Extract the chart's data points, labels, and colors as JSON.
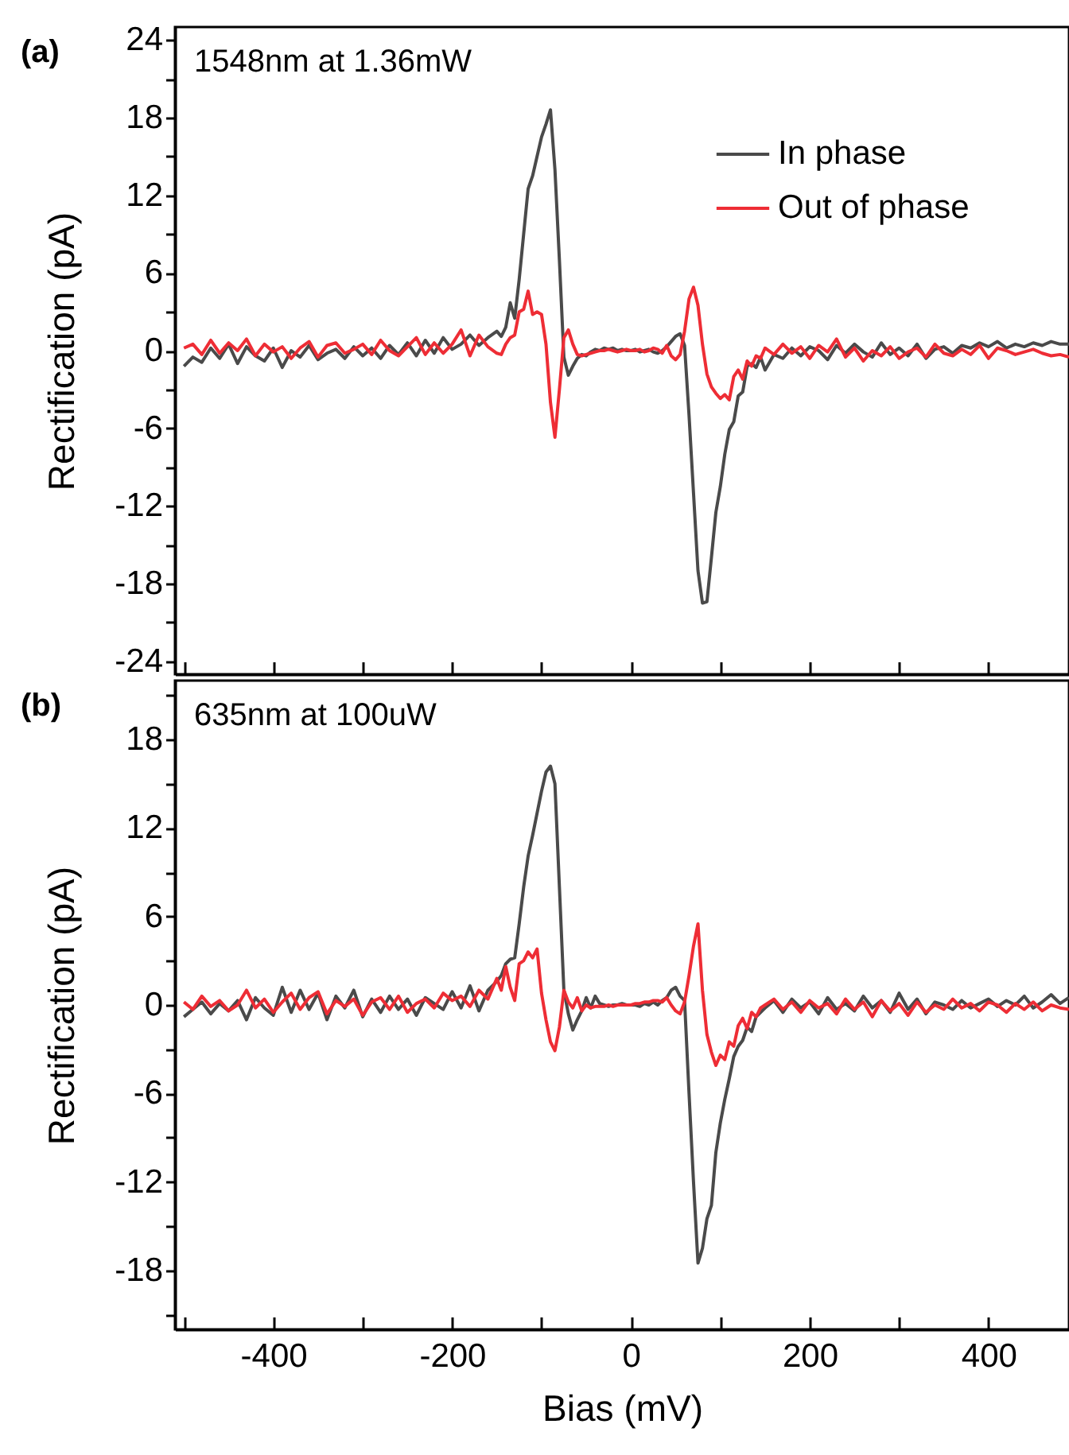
{
  "chart_data": [
    {
      "type": "line",
      "title": "(a)",
      "subtitle": "1548nm at 1.36mW",
      "ylabel": "Rectification (pA)",
      "legend": "top right",
      "tick_labels": "y",
      "xlim": [
        -510,
        490
      ],
      "xticks": [
        {
          "value": -500,
          "label": null
        },
        -400,
        {
          "value": -300,
          "label": null
        },
        -200,
        {
          "value": -100,
          "label": null
        },
        0,
        {
          "value": 100,
          "label": null
        },
        200,
        {
          "value": 300,
          "label": null
        },
        400
      ],
      "ylim": [
        -25,
        25
      ],
      "yticks": [
        -24,
        {
          "value": -21,
          "label": null
        },
        -18,
        {
          "value": -15,
          "label": null
        },
        -12,
        {
          "value": -9,
          "label": null
        },
        -6,
        {
          "value": -3,
          "label": null
        },
        0,
        {
          "value": 3,
          "label": null
        },
        6,
        {
          "value": 9,
          "label": null
        },
        12,
        {
          "value": 15,
          "label": null
        },
        18,
        {
          "value": 21,
          "label": null
        },
        24
      ],
      "x": [
        -500,
        -490,
        -480,
        -470,
        -460,
        -450,
        -440,
        -430,
        -420,
        -410,
        -400,
        -390,
        -380,
        -370,
        -360,
        -350,
        -340,
        -330,
        -320,
        -310,
        -300,
        -290,
        -280,
        -270,
        -260,
        -250,
        -240,
        -230,
        -220,
        -210,
        -200,
        -190,
        -180,
        -170,
        -160,
        -150,
        -145,
        -140,
        -135,
        -130,
        -125,
        -120,
        -115,
        -110,
        -105,
        -100,
        -95,
        -90,
        -85,
        -80,
        -75,
        -70,
        -65,
        -60,
        -55,
        -50,
        -45,
        -40,
        -35,
        -30,
        -25,
        -20,
        -15,
        -10,
        -5,
        0,
        5,
        10,
        15,
        20,
        25,
        30,
        35,
        40,
        45,
        50,
        55,
        60,
        65,
        70,
        75,
        80,
        85,
        90,
        95,
        100,
        105,
        110,
        115,
        120,
        125,
        130,
        135,
        140,
        145,
        150,
        160,
        170,
        180,
        190,
        200,
        210,
        220,
        230,
        240,
        250,
        260,
        270,
        280,
        290,
        300,
        310,
        320,
        330,
        340,
        350,
        360,
        370,
        380,
        390,
        400,
        410,
        420,
        430,
        440,
        450,
        460,
        470,
        480,
        490
      ],
      "series": [
        {
          "name": "In phase",
          "color": "#4a4a4a",
          "values": [
            -1.2,
            -0.5,
            -0.9,
            0.2,
            -0.6,
            0.5,
            -1.0,
            0.3,
            -0.4,
            -0.8,
            0.2,
            -1.3,
            0.0,
            -0.5,
            0.4,
            -0.7,
            -0.2,
            0.1,
            -0.6,
            0.3,
            -0.4,
            0.2,
            -0.6,
            0.4,
            -0.3,
            0.6,
            -0.4,
            0.8,
            -0.2,
            1.0,
            0.1,
            0.5,
            1.2,
            0.4,
            1.0,
            1.5,
            1.1,
            1.8,
            3.7,
            2.5,
            5.5,
            9.0,
            12.5,
            13.5,
            15.0,
            16.5,
            17.5,
            18.6,
            14.0,
            7.0,
            -0.5,
            -1.9,
            -1.2,
            -0.6,
            -0.3,
            -0.4,
            -0.1,
            0.1,
            0.0,
            0.2,
            0.1,
            0.2,
            0.0,
            0.1,
            0.0,
            0.0,
            0.1,
            -0.1,
            0.0,
            0.1,
            -0.1,
            -0.2,
            0.0,
            0.3,
            0.7,
            1.1,
            1.3,
            0.4,
            -5.0,
            -11.0,
            -17.0,
            -19.5,
            -19.4,
            -16.0,
            -12.5,
            -10.5,
            -8.0,
            -6.1,
            -5.5,
            -3.5,
            -3.2,
            -1.2,
            -1.0,
            -1.3,
            -0.5,
            -1.5,
            -0.3,
            -0.6,
            0.2,
            -0.4,
            0.3,
            0.0,
            -0.7,
            0.4,
            -0.2,
            0.5,
            -0.1,
            -0.5,
            0.6,
            -0.3,
            0.2,
            -0.4,
            0.5,
            -0.6,
            0.1,
            0.3,
            -0.2,
            0.4,
            0.2,
            0.6,
            0.3,
            0.7,
            0.2,
            0.5,
            0.3,
            0.6,
            0.4,
            0.7,
            0.5,
            0.5
          ]
        },
        {
          "name": "Out of phase",
          "color": "#ee2d35",
          "values": [
            0.2,
            0.5,
            -0.3,
            0.8,
            -0.2,
            0.6,
            0.0,
            0.9,
            -0.4,
            0.5,
            -0.1,
            0.3,
            -0.6,
            0.2,
            0.7,
            -0.5,
            0.4,
            0.6,
            -0.2,
            0.1,
            0.5,
            -0.3,
            0.8,
            0.0,
            -0.4,
            0.3,
            1.0,
            -0.3,
            0.6,
            -0.2,
            0.5,
            1.6,
            -0.4,
            1.2,
            0.3,
            -0.2,
            -0.3,
            0.5,
            1.0,
            1.2,
            3.0,
            3.2,
            4.6,
            2.8,
            3.0,
            2.8,
            0.5,
            -4.0,
            -6.7,
            -3.0,
            1.0,
            1.6,
            0.5,
            -0.3,
            -0.4,
            -0.3,
            -0.2,
            -0.1,
            0.0,
            0.0,
            0.1,
            0.0,
            -0.1,
            0.0,
            0.1,
            0.0,
            0.0,
            0.1,
            -0.1,
            0.0,
            0.2,
            0.1,
            -0.2,
            0.4,
            -0.4,
            -0.7,
            -0.3,
            1.5,
            4.0,
            4.9,
            3.5,
            0.5,
            -1.8,
            -2.8,
            -3.3,
            -3.7,
            -3.4,
            -3.8,
            -2.0,
            -1.5,
            -2.2,
            -0.8,
            -1.2,
            -0.4,
            -0.6,
            0.2,
            -0.3,
            0.5,
            -0.2,
            0.3,
            -0.6,
            0.4,
            -0.1,
            0.9,
            -0.5,
            0.2,
            -0.8,
            0.0,
            -0.4,
            0.3,
            -0.6,
            -0.1,
            0.2,
            -0.5,
            0.5,
            -0.2,
            -0.4,
            0.1,
            -0.3,
            0.4,
            -0.6,
            0.2,
            0.0,
            -0.3,
            -0.1,
            0.1,
            -0.2,
            -0.4,
            -0.3,
            -0.5
          ]
        }
      ]
    },
    {
      "type": "line",
      "title": "(b)",
      "subtitle": "635nm at 100uW",
      "xlabel": "Bias (mV)",
      "ylabel": "Rectification (pA)",
      "legend": "top right",
      "xlim": [
        -510,
        490
      ],
      "xticks": [
        {
          "value": -500,
          "label": null
        },
        -400,
        {
          "value": -300,
          "label": null
        },
        -200,
        {
          "value": -100,
          "label": null
        },
        0,
        {
          "value": 100,
          "label": null
        },
        200,
        {
          "value": 300,
          "label": null
        },
        400
      ],
      "ylim": [
        -22,
        22
      ],
      "yticks": [
        {
          "value": -21,
          "label": null
        },
        -18,
        {
          "value": -15,
          "label": null
        },
        -12,
        {
          "value": -9,
          "label": null
        },
        -6,
        {
          "value": -3,
          "label": null
        },
        0,
        {
          "value": 3,
          "label": null
        },
        6,
        {
          "value": 9,
          "label": null
        },
        12,
        {
          "value": 15,
          "label": null
        },
        18,
        {
          "value": 21,
          "label": null
        }
      ],
      "x": [
        -500,
        -490,
        -480,
        -470,
        -460,
        -450,
        -440,
        -430,
        -420,
        -410,
        -400,
        -390,
        -380,
        -370,
        -360,
        -350,
        -340,
        -330,
        -320,
        -310,
        -300,
        -290,
        -280,
        -270,
        -260,
        -250,
        -240,
        -230,
        -220,
        -210,
        -200,
        -190,
        -180,
        -170,
        -160,
        -150,
        -145,
        -140,
        -135,
        -130,
        -125,
        -120,
        -115,
        -110,
        -105,
        -100,
        -95,
        -90,
        -85,
        -80,
        -75,
        -70,
        -65,
        -60,
        -55,
        -50,
        -45,
        -40,
        -35,
        -30,
        -25,
        -20,
        -15,
        -10,
        -5,
        0,
        5,
        10,
        15,
        20,
        25,
        30,
        35,
        40,
        45,
        50,
        55,
        60,
        65,
        70,
        75,
        80,
        85,
        90,
        95,
        100,
        105,
        110,
        115,
        120,
        125,
        130,
        135,
        140,
        145,
        150,
        160,
        170,
        180,
        190,
        200,
        210,
        220,
        230,
        240,
        250,
        260,
        270,
        280,
        290,
        300,
        310,
        320,
        330,
        340,
        350,
        360,
        370,
        380,
        390,
        400,
        410,
        420,
        430,
        440,
        450,
        460,
        470,
        480,
        490
      ],
      "series": [
        {
          "name": "In phase",
          "color": "#4a4a4a",
          "values": [
            -0.8,
            -0.3,
            0.2,
            -0.6,
            0.1,
            -0.4,
            0.3,
            -1.0,
            0.5,
            -0.2,
            -0.7,
            1.2,
            -0.5,
            1.0,
            -0.3,
            0.8,
            -1.0,
            0.6,
            -0.2,
            1.0,
            -0.8,
            0.4,
            -0.5,
            0.6,
            -0.3,
            0.4,
            -0.7,
            0.5,
            0.1,
            -0.3,
            0.9,
            -0.2,
            1.3,
            -0.4,
            1.0,
            1.6,
            2.0,
            2.8,
            3.1,
            3.2,
            5.5,
            8.0,
            10.1,
            11.5,
            13.0,
            14.5,
            15.8,
            16.2,
            15.0,
            8.0,
            1.0,
            -0.6,
            -1.7,
            -1.0,
            -0.4,
            0.5,
            -0.2,
            0.6,
            0.1,
            0.0,
            -0.1,
            0.0,
            0.0,
            0.1,
            0.0,
            0.0,
            0.0,
            -0.1,
            0.1,
            0.0,
            0.2,
            0.0,
            0.3,
            0.5,
            1.0,
            1.2,
            0.6,
            0.3,
            -6.0,
            -12.0,
            -17.5,
            -16.5,
            -14.5,
            -13.6,
            -10.0,
            -8.0,
            -6.4,
            -5.0,
            -3.5,
            -2.8,
            -2.4,
            -1.5,
            -1.8,
            -0.8,
            -0.5,
            -0.2,
            0.3,
            -0.5,
            0.4,
            -0.2,
            0.2,
            -0.6,
            0.5,
            -0.3,
            0.1,
            -0.4,
            0.6,
            -0.2,
            0.3,
            -0.5,
            0.8,
            -0.3,
            0.4,
            -0.6,
            0.2,
            0.0,
            -0.3,
            0.3,
            -0.2,
            0.1,
            0.4,
            -0.1,
            0.3,
            0.0,
            0.6,
            -0.2,
            0.2,
            0.7,
            0.1,
            0.5
          ]
        },
        {
          "name": "Out of phase",
          "color": "#ee2d35",
          "values": [
            0.2,
            -0.3,
            0.6,
            -0.1,
            0.3,
            -0.4,
            0.0,
            1.0,
            -0.2,
            0.4,
            -0.5,
            0.2,
            0.8,
            -0.3,
            0.5,
            0.9,
            -0.6,
            0.3,
            -0.1,
            0.4,
            -0.7,
            0.2,
            0.5,
            -0.3,
            0.6,
            -0.5,
            0.1,
            0.4,
            -0.2,
            0.8,
            0.3,
            0.6,
            -0.1,
            1.0,
            0.4,
            1.8,
            1.0,
            2.6,
            1.2,
            0.3,
            2.8,
            3.0,
            3.6,
            3.2,
            3.8,
            0.8,
            -1.0,
            -2.5,
            -3.1,
            -1.5,
            1.0,
            0.2,
            -0.2,
            0.5,
            -0.4,
            0.0,
            -0.2,
            -0.1,
            -0.1,
            -0.1,
            0.0,
            -0.1,
            0.0,
            0.0,
            0.0,
            0.0,
            0.1,
            0.1,
            0.2,
            0.2,
            0.3,
            0.3,
            0.2,
            0.5,
            0.0,
            -0.4,
            -0.6,
            0.2,
            2.0,
            4.0,
            5.5,
            1.0,
            -2.0,
            -3.2,
            -4.1,
            -3.4,
            -3.7,
            -2.5,
            -2.8,
            -1.4,
            -0.9,
            -1.6,
            -0.5,
            -0.8,
            -0.2,
            0.0,
            0.4,
            -0.3,
            0.2,
            -0.5,
            0.3,
            -0.2,
            0.1,
            -0.6,
            0.4,
            -0.3,
            0.2,
            -0.8,
            0.3,
            -0.4,
            0.1,
            -0.7,
            0.2,
            -0.5,
            0.0,
            -0.3,
            0.4,
            -0.2,
            0.1,
            -0.4,
            0.2,
            0.0,
            -0.5,
            0.1,
            -0.3,
            0.2,
            -0.4,
            0.0,
            -0.2,
            -0.3
          ]
        }
      ]
    }
  ]
}
